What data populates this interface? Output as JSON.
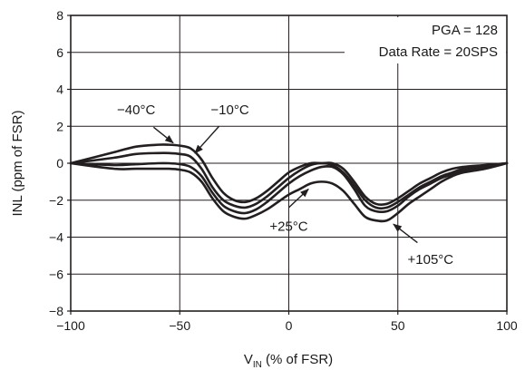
{
  "chart_data": {
    "type": "line",
    "xlabel": "V",
    "xlabel_sub": "IN",
    "xlabel_suffix": " (% of FSR)",
    "ylabel": "INL (ppm of FSR)",
    "xlim": [
      -100,
      100
    ],
    "ylim": [
      -8,
      8
    ],
    "xticks": [
      -100,
      -50,
      0,
      50,
      100
    ],
    "yticks": [
      -8,
      -6,
      -4,
      -2,
      0,
      2,
      4,
      6,
      8
    ],
    "xtick_labels": [
      "−100",
      "−50",
      "0",
      "50",
      "100"
    ],
    "ytick_labels": [
      "−8",
      "−6",
      "−4",
      "−2",
      "0",
      "2",
      "4",
      "6",
      "8"
    ],
    "grid": true,
    "legend_lines": [
      "PGA = 128",
      "Data Rate = 20SPS"
    ],
    "series": [
      {
        "name": "−40°C",
        "x": [
          -100,
          -80,
          -70,
          -60,
          -55,
          -50,
          -45,
          -40,
          -35,
          -30,
          -25,
          -20,
          -15,
          -10,
          -5,
          0,
          5,
          10,
          15,
          20,
          25,
          30,
          35,
          40,
          45,
          50,
          55,
          60,
          65,
          70,
          75,
          80,
          90,
          100
        ],
        "y": [
          0,
          0.6,
          0.9,
          1.0,
          1.0,
          0.95,
          0.8,
          0.2,
          -0.8,
          -1.6,
          -2.0,
          -2.1,
          -1.9,
          -1.5,
          -1.0,
          -0.5,
          -0.2,
          0.0,
          0.0,
          0.0,
          -0.3,
          -1.0,
          -1.8,
          -2.2,
          -2.2,
          -1.9,
          -1.5,
          -1.1,
          -0.8,
          -0.5,
          -0.3,
          -0.2,
          -0.1,
          0
        ]
      },
      {
        "name": "−10°C",
        "x": [
          -100,
          -80,
          -70,
          -60,
          -55,
          -50,
          -45,
          -40,
          -35,
          -30,
          -25,
          -20,
          -15,
          -10,
          -5,
          0,
          5,
          10,
          15,
          20,
          25,
          30,
          35,
          40,
          45,
          50,
          55,
          60,
          65,
          70,
          75,
          80,
          90,
          100
        ],
        "y": [
          0,
          0.3,
          0.5,
          0.55,
          0.55,
          0.5,
          0.35,
          -0.3,
          -1.3,
          -2.0,
          -2.3,
          -2.4,
          -2.2,
          -1.8,
          -1.3,
          -0.8,
          -0.4,
          -0.1,
          0.0,
          -0.1,
          -0.5,
          -1.2,
          -2.0,
          -2.4,
          -2.4,
          -2.1,
          -1.7,
          -1.3,
          -1.0,
          -0.7,
          -0.5,
          -0.3,
          -0.15,
          0
        ]
      },
      {
        "name": "+25°C",
        "x": [
          -100,
          -80,
          -70,
          -60,
          -55,
          -50,
          -45,
          -40,
          -35,
          -30,
          -25,
          -20,
          -15,
          -10,
          -5,
          0,
          5,
          10,
          15,
          20,
          25,
          30,
          35,
          40,
          45,
          50,
          55,
          60,
          65,
          70,
          75,
          80,
          90,
          100
        ],
        "y": [
          0,
          -0.1,
          -0.05,
          0.0,
          0.0,
          -0.05,
          -0.2,
          -0.7,
          -1.6,
          -2.3,
          -2.6,
          -2.7,
          -2.5,
          -2.1,
          -1.6,
          -1.1,
          -0.7,
          -0.4,
          -0.2,
          -0.2,
          -0.6,
          -1.4,
          -2.3,
          -2.6,
          -2.6,
          -2.3,
          -1.8,
          -1.4,
          -1.1,
          -0.8,
          -0.6,
          -0.4,
          -0.2,
          0
        ]
      },
      {
        "name": "+105°C",
        "x": [
          -100,
          -80,
          -70,
          -60,
          -55,
          -50,
          -45,
          -40,
          -35,
          -30,
          -25,
          -20,
          -15,
          -10,
          -5,
          0,
          5,
          10,
          15,
          20,
          25,
          30,
          35,
          40,
          45,
          50,
          55,
          60,
          65,
          70,
          75,
          80,
          90,
          100
        ],
        "y": [
          0,
          -0.3,
          -0.3,
          -0.3,
          -0.3,
          -0.35,
          -0.5,
          -1.0,
          -1.9,
          -2.6,
          -2.9,
          -3.0,
          -2.8,
          -2.5,
          -2.1,
          -1.7,
          -1.4,
          -1.1,
          -1.0,
          -1.1,
          -1.5,
          -2.2,
          -2.9,
          -3.1,
          -3.1,
          -2.7,
          -2.2,
          -1.8,
          -1.4,
          -1.0,
          -0.7,
          -0.5,
          -0.3,
          0
        ]
      }
    ],
    "annotations": [
      {
        "label": "−40°C",
        "text_at": [
          -70,
          2.9
        ],
        "arrow_from": [
          -62,
          1.95
        ],
        "arrow_to": [
          -53,
          1.1
        ]
      },
      {
        "label": "−10°C",
        "text_at": [
          -27,
          2.9
        ],
        "arrow_from": [
          -32,
          2.0
        ],
        "arrow_to": [
          -43,
          0.55
        ]
      },
      {
        "label": "+25°C",
        "text_at": [
          0,
          -3.4
        ],
        "arrow_from": [
          0,
          -2.4
        ],
        "arrow_to": [
          9,
          -1.4
        ]
      },
      {
        "label": "+105°C",
        "text_at": [
          65,
          -5.2
        ],
        "arrow_from": [
          59,
          -4.3
        ],
        "arrow_to": [
          48,
          -3.3
        ]
      }
    ]
  }
}
